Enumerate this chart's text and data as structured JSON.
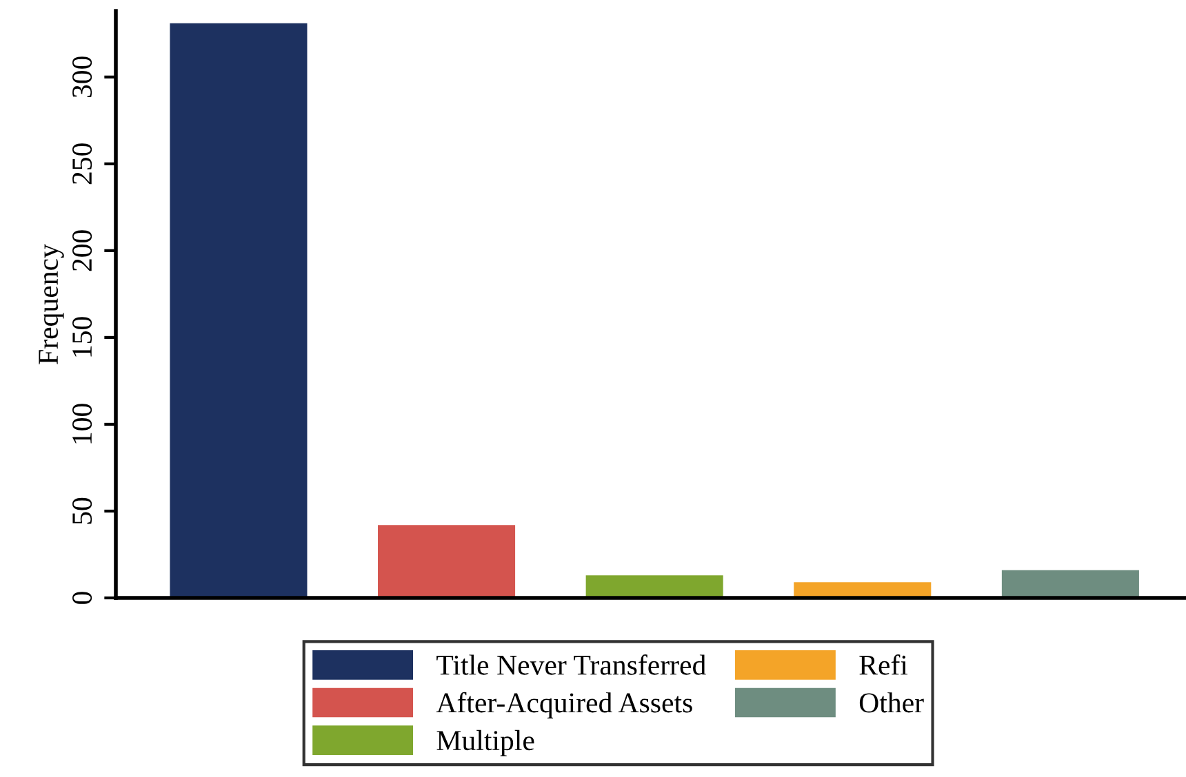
{
  "chart_data": {
    "type": "bar",
    "ylabel": "Frequency",
    "categories": [
      null,
      null,
      null,
      null,
      null
    ],
    "series": [
      {
        "name": "Title Never Transferred",
        "color": "#1d3160",
        "values": [
          331,
          null,
          null,
          null,
          null
        ]
      },
      {
        "name": "After-Acquired Assets",
        "color": "#d4544e",
        "values": [
          null,
          42,
          null,
          null,
          null
        ]
      },
      {
        "name": "Multiple",
        "color": "#7fa72e",
        "values": [
          null,
          null,
          13,
          null,
          null
        ]
      },
      {
        "name": "Refi",
        "color": "#f4a428",
        "values": [
          null,
          null,
          null,
          9,
          null
        ]
      },
      {
        "name": "Other",
        "color": "#6e8d80",
        "values": [
          null,
          null,
          null,
          null,
          16
        ]
      }
    ],
    "ylim": [
      0,
      338
    ],
    "yticks": [
      0,
      50,
      100,
      150,
      200,
      250,
      300
    ],
    "grid": false,
    "legend": "bottom",
    "tick_labels": "y"
  }
}
